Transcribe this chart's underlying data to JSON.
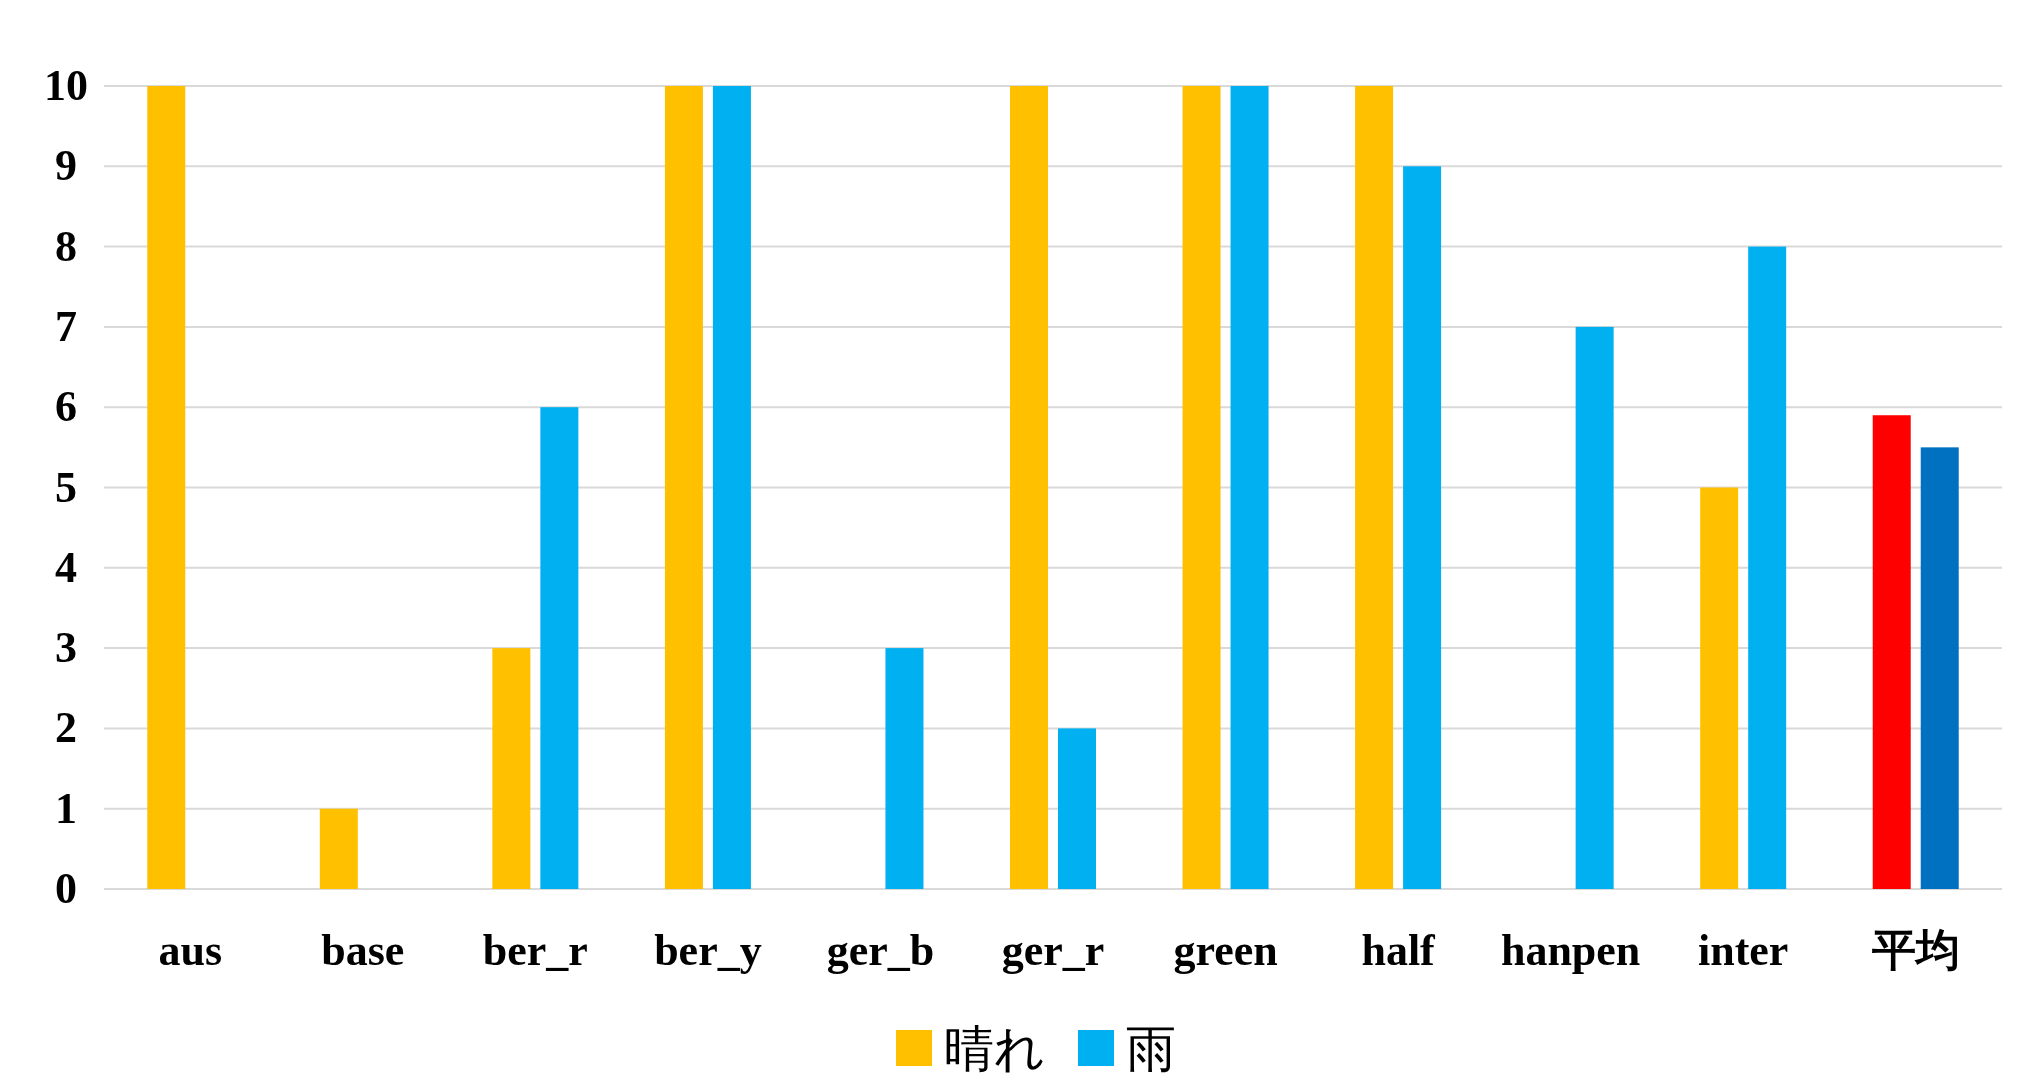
{
  "chart_data": {
    "type": "bar",
    "categories": [
      "aus",
      "base",
      "ber_r",
      "ber_y",
      "ger_b",
      "ger_r",
      "green",
      "half",
      "hanpen",
      "inter",
      "平均"
    ],
    "series": [
      {
        "name": "晴れ",
        "color": "#ffc000",
        "colors": [
          "#ffc000",
          "#ffc000",
          "#ffc000",
          "#ffc000",
          "#ffc000",
          "#ffc000",
          "#ffc000",
          "#ffc000",
          "#ffc000",
          "#ffc000",
          "#ff0000"
        ],
        "values": [
          10,
          1,
          3,
          10,
          0,
          10,
          10,
          10,
          0,
          5,
          5.9
        ]
      },
      {
        "name": "雨",
        "color": "#00b0f0",
        "colors": [
          "#00b0f0",
          "#00b0f0",
          "#00b0f0",
          "#00b0f0",
          "#00b0f0",
          "#00b0f0",
          "#00b0f0",
          "#00b0f0",
          "#00b0f0",
          "#00b0f0",
          "#0070c0"
        ],
        "values": [
          0,
          0,
          6,
          10,
          3,
          2,
          10,
          9,
          7,
          8,
          5.5
        ]
      }
    ],
    "ylim": [
      0,
      10
    ],
    "yticks": [
      0,
      1,
      2,
      3,
      4,
      5,
      6,
      7,
      8,
      9,
      10
    ],
    "grid": "y",
    "legend": "bottom"
  }
}
